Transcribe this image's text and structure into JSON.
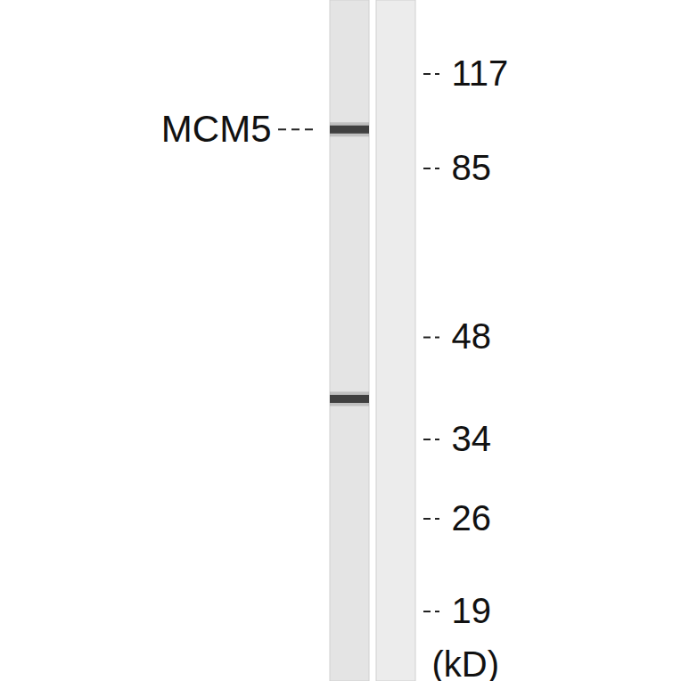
{
  "chart_data": {
    "type": "blot",
    "ylabel": "(kD)",
    "log": "y",
    "ylim": [
      15,
      150
    ],
    "yticks": [
      117,
      85,
      48,
      34,
      26,
      19
    ],
    "lanes": [
      {
        "bands": [
          97,
          39
        ]
      },
      {
        "bands": []
      }
    ],
    "annotations": [
      {
        "text": "MCM5",
        "value": 97
      }
    ]
  }
}
